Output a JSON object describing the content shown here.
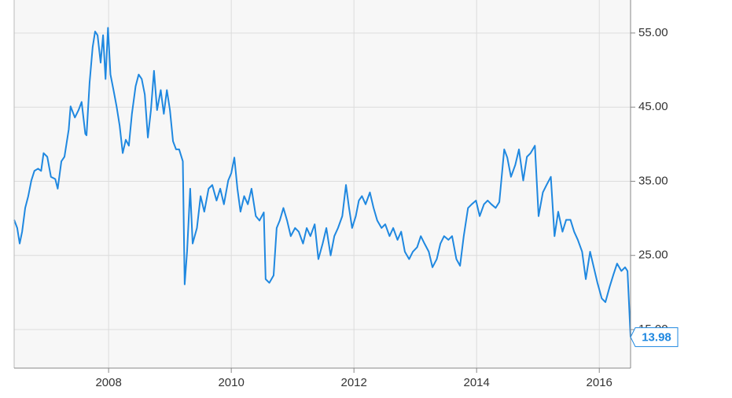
{
  "chart_data": {
    "type": "line",
    "x": [
      2006.46,
      2006.51,
      2006.55,
      2006.59,
      2006.64,
      2006.69,
      2006.74,
      2006.79,
      2006.85,
      2006.9,
      2006.94,
      2007.0,
      2007.06,
      2007.13,
      2007.17,
      2007.23,
      2007.28,
      2007.35,
      2007.38,
      2007.45,
      2007.51,
      2007.56,
      2007.62,
      2007.64,
      2007.69,
      2007.74,
      2007.78,
      2007.82,
      2007.87,
      2007.91,
      2007.95,
      2007.99,
      2008.03,
      2008.08,
      2008.13,
      2008.18,
      2008.23,
      2008.28,
      2008.33,
      2008.38,
      2008.44,
      2008.49,
      2008.54,
      2008.59,
      2008.64,
      2008.69,
      2008.74,
      2008.79,
      2008.85,
      2008.9,
      2008.95,
      2009.0,
      2009.05,
      2009.1,
      2009.15,
      2009.21,
      2009.24,
      2009.28,
      2009.33,
      2009.37,
      2009.44,
      2009.5,
      2009.56,
      2009.63,
      2009.69,
      2009.76,
      2009.82,
      2009.88,
      2009.95,
      2010.0,
      2010.05,
      2010.1,
      2010.15,
      2010.21,
      2010.27,
      2010.33,
      2010.4,
      2010.46,
      2010.53,
      2010.56,
      2010.62,
      2010.69,
      2010.74,
      2010.79,
      2010.85,
      2010.91,
      2010.97,
      2011.04,
      2011.1,
      2011.17,
      2011.23,
      2011.29,
      2011.36,
      2011.42,
      2011.49,
      2011.55,
      2011.62,
      2011.68,
      2011.74,
      2011.81,
      2011.87,
      2011.92,
      2011.97,
      2012.03,
      2012.08,
      2012.13,
      2012.19,
      2012.26,
      2012.32,
      2012.38,
      2012.45,
      2012.51,
      2012.58,
      2012.64,
      2012.71,
      2012.77,
      2012.83,
      2012.9,
      2012.96,
      2013.03,
      2013.09,
      2013.15,
      2013.22,
      2013.28,
      2013.35,
      2013.41,
      2013.47,
      2013.54,
      2013.6,
      2013.67,
      2013.73,
      2013.79,
      2013.86,
      2013.92,
      2013.99,
      2014.05,
      2014.12,
      2014.18,
      2014.24,
      2014.31,
      2014.37,
      2014.45,
      2014.5,
      2014.56,
      2014.63,
      2014.69,
      2014.76,
      2014.82,
      2014.88,
      2014.95,
      2015.01,
      2015.08,
      2015.14,
      2015.21,
      2015.27,
      2015.33,
      2015.4,
      2015.46,
      2015.53,
      2015.59,
      2015.65,
      2015.72,
      2015.78,
      2015.85,
      2015.91,
      2015.97,
      2016.04,
      2016.1,
      2016.17,
      2016.23,
      2016.29,
      2016.36,
      2016.42,
      2016.46,
      2016.51
    ],
    "series": [
      {
        "color": "#1f88e0",
        "values": [
          29.8,
          28.7,
          26.6,
          28.2,
          31.4,
          33.0,
          35.1,
          36.4,
          36.7,
          36.4,
          38.8,
          38.3,
          35.6,
          35.3,
          34.0,
          37.7,
          38.3,
          42.0,
          45.1,
          43.6,
          44.6,
          45.7,
          41.4,
          41.2,
          48.3,
          53.1,
          55.2,
          54.7,
          51.0,
          54.7,
          48.8,
          55.7,
          49.4,
          47.3,
          45.1,
          42.5,
          38.8,
          40.6,
          39.8,
          44.1,
          47.8,
          49.4,
          48.8,
          46.7,
          40.9,
          44.6,
          49.9,
          44.6,
          47.3,
          44.1,
          47.3,
          44.6,
          40.4,
          39.3,
          39.3,
          37.7,
          21.1,
          25.6,
          34.0,
          26.6,
          28.7,
          33.0,
          30.9,
          34.0,
          34.5,
          32.4,
          34.0,
          31.9,
          35.1,
          36.1,
          38.2,
          34.0,
          30.9,
          33.0,
          31.9,
          34.0,
          30.3,
          29.7,
          30.8,
          21.8,
          21.3,
          22.3,
          28.7,
          29.7,
          31.4,
          29.7,
          27.6,
          28.7,
          28.2,
          26.6,
          28.7,
          27.6,
          29.2,
          24.5,
          26.6,
          28.7,
          25.0,
          27.6,
          28.7,
          30.3,
          34.5,
          31.4,
          28.7,
          30.3,
          32.4,
          33.0,
          31.9,
          33.5,
          31.4,
          29.7,
          28.7,
          29.2,
          27.6,
          28.7,
          27.1,
          28.2,
          25.5,
          24.5,
          25.5,
          26.1,
          27.6,
          26.6,
          25.5,
          23.4,
          24.5,
          26.6,
          27.6,
          27.1,
          27.6,
          24.5,
          23.6,
          27.6,
          31.4,
          31.9,
          32.4,
          30.3,
          31.9,
          32.4,
          31.9,
          31.4,
          32.2,
          39.3,
          38.2,
          35.6,
          37.2,
          39.3,
          35.1,
          38.3,
          38.8,
          39.8,
          30.3,
          33.5,
          34.5,
          35.6,
          27.6,
          30.9,
          28.2,
          29.8,
          29.8,
          28.2,
          27.1,
          25.5,
          21.8,
          25.5,
          23.4,
          21.3,
          19.2,
          18.7,
          20.8,
          22.4,
          23.9,
          22.9,
          23.4,
          22.9,
          13.98
        ]
      }
    ],
    "xlim": [
      2006.46,
      2016.51
    ],
    "ylim": [
      9.8,
      59.45
    ],
    "xticks": [
      2008,
      2010,
      2012,
      2014,
      2016
    ],
    "yticks": [
      {
        "value": 15,
        "label": "15.00"
      },
      {
        "value": 25,
        "label": "25.00"
      },
      {
        "value": 35,
        "label": "35.00"
      },
      {
        "value": 45,
        "label": "45.00"
      },
      {
        "value": 55,
        "label": "55.00"
      }
    ],
    "grid": true
  }
}
